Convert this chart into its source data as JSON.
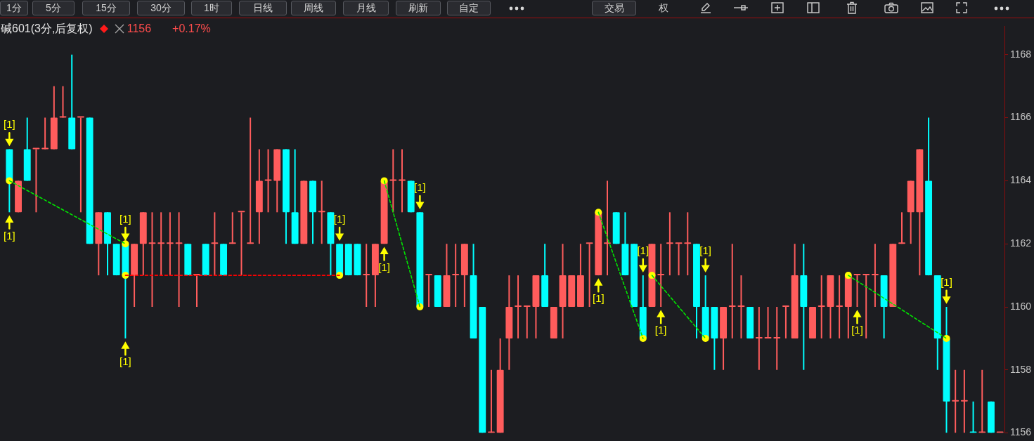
{
  "chart_data": {
    "type": "candlestick",
    "title": "碱601(3分,后复权)",
    "annotations": [
      "1156",
      "+0.17%",
      "1分",
      "5分",
      "15分",
      "30分",
      "1时",
      "日线",
      "周线",
      "月线",
      "刷新",
      "自定",
      "交易",
      "权"
    ],
    "categories": [
      null,
      null,
      null,
      null,
      null,
      null,
      null,
      null,
      null,
      null,
      null,
      null,
      null,
      null,
      null,
      null,
      null,
      null,
      null,
      null,
      null,
      null,
      null,
      null,
      null,
      null,
      null,
      null,
      null,
      null,
      null,
      null,
      null,
      null,
      null,
      null,
      null,
      null,
      null,
      null,
      null,
      null,
      null,
      null,
      null,
      null,
      null,
      null,
      null,
      null,
      null,
      null,
      null,
      null,
      null,
      null,
      null,
      null,
      null,
      null,
      null,
      null,
      null,
      null,
      null,
      null,
      null,
      null,
      null,
      null,
      null,
      null,
      null,
      null,
      null,
      null,
      null,
      null,
      null,
      null,
      null,
      null,
      null,
      null,
      null,
      null,
      null,
      null,
      null,
      null,
      null,
      null,
      null,
      null,
      null,
      null,
      null,
      null,
      null,
      null,
      null,
      null,
      null,
      null,
      null,
      null,
      null,
      null,
      null,
      null,
      null,
      null
    ],
    "ohlc": [
      [
        1165,
        1165,
        1163,
        1164
      ],
      [
        1163,
        1164,
        1163,
        1164
      ],
      [
        1165,
        1166,
        1164,
        1164
      ],
      [
        1165,
        1165,
        1163,
        1165
      ],
      [
        1165,
        1166,
        1165,
        1165
      ],
      [
        1165,
        1167,
        1165,
        1166
      ],
      [
        1166,
        1167,
        1166,
        1166
      ],
      [
        1166,
        1168,
        1165,
        1165
      ],
      [
        1166,
        1166,
        1163,
        1166
      ],
      [
        1166,
        1166,
        1162,
        1162
      ],
      [
        1162,
        1163,
        1161,
        1163
      ],
      [
        1163,
        1163,
        1161,
        1162
      ],
      [
        1162,
        1162,
        1161,
        1161
      ],
      [
        1162,
        1162,
        1159,
        1161
      ],
      [
        1161,
        1162,
        1160,
        1162
      ],
      [
        1162,
        1163,
        1161,
        1163
      ],
      [
        1162,
        1163,
        1160,
        1162
      ],
      [
        1162,
        1163,
        1161,
        1162
      ],
      [
        1162,
        1163,
        1161,
        1162
      ],
      [
        1162,
        1163,
        1160,
        1162
      ],
      [
        1162,
        1162,
        1161,
        1161
      ],
      [
        1161,
        1161,
        1160,
        1161
      ],
      [
        1162,
        1162,
        1161,
        1161
      ],
      [
        1162,
        1163,
        1161,
        1162
      ],
      [
        1162,
        1162,
        1161,
        1161
      ],
      [
        1162,
        1163,
        1162,
        1162
      ],
      [
        1163,
        1163,
        1161,
        1163
      ],
      [
        1162,
        1166,
        1162,
        1162
      ],
      [
        1163,
        1165,
        1162,
        1164
      ],
      [
        1164,
        1165,
        1163,
        1164
      ],
      [
        1164,
        1165,
        1163,
        1165
      ],
      [
        1165,
        1165,
        1162,
        1163
      ],
      [
        1163,
        1165,
        1162,
        1162
      ],
      [
        1162,
        1164,
        1162,
        1164
      ],
      [
        1164,
        1164,
        1162,
        1163
      ],
      [
        1163,
        1164,
        1162,
        1163
      ],
      [
        1163,
        1163,
        1161,
        1162
      ],
      [
        1162,
        1162,
        1161,
        1161
      ],
      [
        1162,
        1162,
        1161,
        1161
      ],
      [
        1162,
        1162,
        1161,
        1161
      ],
      [
        1161,
        1162,
        1160,
        1161
      ],
      [
        1161,
        1162,
        1160,
        1162
      ],
      [
        1162,
        1164,
        1162,
        1164
      ],
      [
        1164,
        1165,
        1163,
        1164
      ],
      [
        1164,
        1165,
        1163,
        1164
      ],
      [
        1164,
        1164,
        1163,
        1163
      ],
      [
        1163,
        1163,
        1160,
        1160
      ],
      [
        1161,
        1161,
        1160,
        1161
      ],
      [
        1161,
        1161,
        1160,
        1160
      ],
      [
        1160,
        1162,
        1160,
        1161
      ],
      [
        1161,
        1162,
        1160,
        1161
      ],
      [
        1161,
        1162,
        1160,
        1162
      ],
      [
        1161,
        1162,
        1159,
        1159
      ],
      [
        1160,
        1160,
        1156,
        1156
      ],
      [
        1156,
        1158,
        1156,
        1156
      ],
      [
        1156,
        1159,
        1156,
        1158
      ],
      [
        1159,
        1161,
        1158,
        1160
      ],
      [
        1160,
        1161,
        1159,
        1160
      ],
      [
        1160,
        1160,
        1159,
        1160
      ],
      [
        1160,
        1161,
        1159,
        1161
      ],
      [
        1161,
        1162,
        1160,
        1160
      ],
      [
        1159,
        1160,
        1159,
        1160
      ],
      [
        1160,
        1162,
        1159,
        1161
      ],
      [
        1160,
        1161,
        1160,
        1161
      ],
      [
        1160,
        1162,
        1160,
        1161
      ],
      [
        1162,
        1162,
        1160,
        1162
      ],
      [
        1161,
        1163,
        1161,
        1163
      ],
      [
        1162,
        1164,
        1161,
        1162
      ],
      [
        1163,
        1163,
        1162,
        1162
      ],
      [
        1162,
        1163,
        1161,
        1161
      ],
      [
        1162,
        1162,
        1160,
        1160
      ],
      [
        1160,
        1161,
        1159,
        1159
      ],
      [
        1160,
        1162,
        1160,
        1162
      ],
      [
        1161,
        1162,
        1160,
        1161
      ],
      [
        1162,
        1163,
        1161,
        1162
      ],
      [
        1162,
        1162,
        1161,
        1162
      ],
      [
        1162,
        1163,
        1161,
        1162
      ],
      [
        1162,
        1162,
        1159,
        1160
      ],
      [
        1160,
        1161,
        1159,
        1159
      ],
      [
        1160,
        1160,
        1158,
        1159
      ],
      [
        1159,
        1160,
        1158,
        1160
      ],
      [
        1160,
        1162,
        1159,
        1160
      ],
      [
        1160,
        1161,
        1159,
        1160
      ],
      [
        1160,
        1160,
        1159,
        1159
      ],
      [
        1159,
        1160,
        1158,
        1159
      ],
      [
        1159,
        1160,
        1159,
        1159
      ],
      [
        1159,
        1160,
        1158,
        1159
      ],
      [
        1160,
        1160,
        1159,
        1160
      ],
      [
        1159,
        1162,
        1159,
        1161
      ],
      [
        1161,
        1162,
        1158,
        1160
      ],
      [
        1159,
        1160,
        1159,
        1160
      ],
      [
        1160,
        1161,
        1159,
        1160
      ],
      [
        1160,
        1161,
        1159,
        1161
      ],
      [
        1160,
        1161,
        1159,
        1160
      ],
      [
        1160,
        1161,
        1159,
        1161
      ],
      [
        1161,
        1161,
        1160,
        1161
      ],
      [
        1161,
        1161,
        1159,
        1161
      ],
      [
        1161,
        1162,
        1160,
        1161
      ],
      [
        1161,
        1161,
        1159,
        1160
      ],
      [
        1160,
        1162,
        1160,
        1162
      ],
      [
        1162,
        1163,
        1162,
        1162
      ],
      [
        1163,
        1164,
        1162,
        1164
      ],
      [
        1163,
        1165,
        1161,
        1165
      ],
      [
        1164,
        1166,
        1161,
        1161
      ],
      [
        1161,
        1161,
        1158,
        1159
      ],
      [
        1159,
        1160,
        1156,
        1157
      ],
      [
        1157,
        1158,
        1156,
        1157
      ],
      [
        1157,
        1158,
        1156,
        1157
      ],
      [
        1156,
        1157,
        1156,
        1156
      ],
      [
        1156,
        1158,
        1156,
        1156
      ],
      [
        1157,
        1157,
        1156,
        1156
      ],
      [
        1156,
        1156,
        1156,
        1156
      ]
    ],
    "colors": [
      "#00ffff",
      "#ff5c5c",
      "#00ffff",
      "#ff5c5c",
      "#ff5c5c",
      "#ff5c5c",
      "#ff5c5c",
      "#00ffff",
      "#ff5c5c",
      "#00ffff",
      "#ff5c5c",
      "#00ffff",
      "#00ffff",
      "#00ffff",
      "#ff5c5c",
      "#ff5c5c",
      "#ff5c5c",
      "#ff5c5c",
      "#ff5c5c",
      "#ff5c5c",
      "#00ffff",
      "#ff5c5c",
      "#00ffff",
      "#ff5c5c",
      "#00ffff",
      "#ff5c5c",
      "#ff5c5c",
      "#ff5c5c",
      "#ff5c5c",
      "#ff5c5c",
      "#ff5c5c",
      "#00ffff",
      "#00ffff",
      "#ff5c5c",
      "#00ffff",
      "#ff5c5c",
      "#00ffff",
      "#00ffff",
      "#00ffff",
      "#00ffff",
      "#ff5c5c",
      "#ff5c5c",
      "#ff5c5c",
      "#ff5c5c",
      "#ff5c5c",
      "#00ffff",
      "#00ffff",
      "#ff5c5c",
      "#00ffff",
      "#ff5c5c",
      "#ff5c5c",
      "#ff5c5c",
      "#00ffff",
      "#00ffff",
      "#ff5c5c",
      "#ff5c5c",
      "#ff5c5c",
      "#ff5c5c",
      "#ff5c5c",
      "#ff5c5c",
      "#00ffff",
      "#ff5c5c",
      "#ff5c5c",
      "#ff5c5c",
      "#ff5c5c",
      "#ff5c5c",
      "#ff5c5c",
      "#ff5c5c",
      "#00ffff",
      "#00ffff",
      "#00ffff",
      "#00ffff",
      "#ff5c5c",
      "#ff5c5c",
      "#ff5c5c",
      "#ff5c5c",
      "#ff5c5c",
      "#00ffff",
      "#00ffff",
      "#00ffff",
      "#ff5c5c",
      "#ff5c5c",
      "#ff5c5c",
      "#00ffff",
      "#ff5c5c",
      "#ff5c5c",
      "#ff5c5c",
      "#ff5c5c",
      "#ff5c5c",
      "#00ffff",
      "#ff5c5c",
      "#ff5c5c",
      "#ff5c5c",
      "#ff5c5c",
      "#ff5c5c",
      "#ff5c5c",
      "#ff5c5c",
      "#ff5c5c",
      "#00ffff",
      "#ff5c5c",
      "#ff5c5c",
      "#ff5c5c",
      "#ff5c5c",
      "#00ffff",
      "#00ffff",
      "#00ffff",
      "#ff5c5c",
      "#ff5c5c",
      "#00ffff",
      "#ff5c5c",
      "#00ffff",
      "#ff5c5c"
    ],
    "series": [
      {
        "type": "line",
        "color": "#00e600",
        "line_style": "dashed",
        "values": [
          1164,
          null,
          null,
          null,
          null,
          null,
          null,
          null,
          null,
          null,
          null,
          null,
          null,
          1162,
          null,
          null,
          null,
          null,
          null,
          null,
          null,
          null,
          null,
          null,
          null,
          null,
          null,
          null,
          null,
          null,
          null,
          null,
          null,
          null,
          null,
          null,
          null,
          null,
          null,
          null,
          null,
          null,
          null,
          null,
          null,
          null,
          null,
          null,
          null,
          null,
          null,
          null,
          null,
          null,
          null,
          null,
          null,
          null,
          null,
          null,
          null,
          null,
          null,
          null,
          null,
          null,
          null,
          null,
          null,
          null,
          null,
          null,
          null,
          null,
          null,
          null,
          null,
          null,
          null,
          null,
          null,
          null,
          null,
          null,
          null,
          null,
          null,
          null,
          null,
          null,
          null,
          null,
          null,
          null,
          null,
          null,
          null,
          null,
          null,
          null,
          null,
          null,
          null,
          null,
          null,
          null,
          null,
          null,
          null,
          null,
          null,
          null
        ]
      },
      {
        "type": "line",
        "color": "#00e600",
        "line_style": "dashed",
        "values": [
          null,
          null,
          null,
          null,
          null,
          null,
          null,
          null,
          null,
          null,
          null,
          null,
          null,
          null,
          null,
          null,
          null,
          null,
          null,
          null,
          null,
          null,
          null,
          null,
          null,
          null,
          null,
          null,
          null,
          null,
          null,
          null,
          null,
          null,
          null,
          null,
          null,
          null,
          null,
          null,
          null,
          null,
          1164,
          null,
          null,
          null,
          1160,
          null,
          null,
          null,
          null,
          null,
          null,
          null,
          null,
          null,
          null,
          null,
          null,
          null,
          null,
          null,
          null,
          null,
          null,
          null,
          null,
          null,
          null,
          null,
          null,
          null,
          null,
          null,
          null,
          null,
          null,
          null,
          null,
          null,
          null,
          null,
          null,
          null,
          null,
          null,
          null,
          null,
          null,
          null,
          null,
          null,
          null,
          null,
          null,
          null,
          null,
          null,
          null,
          null,
          null,
          null,
          null,
          null,
          null,
          null,
          null,
          null,
          null,
          null,
          null,
          null
        ]
      },
      {
        "type": "line",
        "color": "#00e600",
        "line_style": "dashed",
        "values": [
          null,
          null,
          null,
          null,
          null,
          null,
          null,
          null,
          null,
          null,
          null,
          null,
          null,
          null,
          null,
          null,
          null,
          null,
          null,
          null,
          null,
          null,
          null,
          null,
          null,
          null,
          null,
          null,
          null,
          null,
          null,
          null,
          null,
          null,
          null,
          null,
          null,
          null,
          null,
          null,
          null,
          null,
          null,
          null,
          null,
          null,
          null,
          null,
          null,
          null,
          null,
          null,
          null,
          null,
          null,
          null,
          null,
          null,
          null,
          null,
          null,
          null,
          null,
          null,
          null,
          null,
          1163,
          null,
          null,
          null,
          null,
          1159,
          null,
          null,
          null,
          null,
          null,
          null,
          null,
          null,
          null,
          null,
          null,
          null,
          null,
          null,
          null,
          null,
          null,
          null,
          null,
          null,
          null,
          null,
          null,
          null,
          null,
          null,
          null,
          null,
          null,
          null,
          null,
          null,
          null,
          null,
          null,
          null,
          null,
          null,
          null,
          null
        ]
      },
      {
        "type": "line",
        "color": "#00e600",
        "line_style": "dashed",
        "values": [
          null,
          null,
          null,
          null,
          null,
          null,
          null,
          null,
          null,
          null,
          null,
          null,
          null,
          null,
          null,
          null,
          null,
          null,
          null,
          null,
          null,
          null,
          null,
          null,
          null,
          null,
          null,
          null,
          null,
          null,
          null,
          null,
          null,
          null,
          null,
          null,
          null,
          null,
          null,
          null,
          null,
          null,
          null,
          null,
          null,
          null,
          null,
          null,
          null,
          null,
          null,
          null,
          null,
          null,
          null,
          null,
          null,
          null,
          null,
          null,
          null,
          null,
          null,
          null,
          null,
          null,
          null,
          null,
          null,
          null,
          null,
          null,
          1161,
          null,
          null,
          null,
          null,
          null,
          1159,
          null,
          null,
          null,
          null,
          null,
          null,
          null,
          null,
          null,
          null,
          null,
          null,
          null,
          null,
          null,
          null,
          null,
          null,
          null,
          null,
          null,
          null,
          null,
          null,
          null,
          null,
          null,
          null,
          null,
          null,
          null,
          null,
          null
        ]
      },
      {
        "type": "line",
        "color": "#00e600",
        "line_style": "dashed",
        "values": [
          null,
          null,
          null,
          null,
          null,
          null,
          null,
          null,
          null,
          null,
          null,
          null,
          null,
          null,
          null,
          null,
          null,
          null,
          null,
          null,
          null,
          null,
          null,
          null,
          null,
          null,
          null,
          null,
          null,
          null,
          null,
          null,
          null,
          null,
          null,
          null,
          null,
          null,
          null,
          null,
          null,
          null,
          null,
          null,
          null,
          null,
          null,
          null,
          null,
          null,
          null,
          null,
          null,
          null,
          null,
          null,
          null,
          null,
          null,
          null,
          null,
          null,
          null,
          null,
          null,
          null,
          null,
          null,
          null,
          null,
          null,
          null,
          null,
          null,
          null,
          null,
          null,
          null,
          null,
          null,
          null,
          null,
          null,
          null,
          null,
          null,
          null,
          null,
          null,
          null,
          null,
          null,
          null,
          null,
          1161,
          null,
          null,
          null,
          null,
          null,
          null,
          null,
          null,
          null,
          null,
          1159,
          null,
          null,
          null,
          null,
          null,
          null
        ]
      },
      {
        "type": "line",
        "color": "#ff0000",
        "line_style": "dashed",
        "values": [
          null,
          null,
          null,
          null,
          null,
          null,
          null,
          null,
          null,
          null,
          null,
          null,
          null,
          1161,
          null,
          null,
          null,
          null,
          null,
          null,
          null,
          null,
          null,
          null,
          null,
          null,
          null,
          null,
          null,
          null,
          null,
          null,
          null,
          null,
          null,
          null,
          null,
          1161,
          null,
          null,
          null,
          null,
          null,
          null,
          null,
          null,
          null,
          null,
          null,
          null,
          null,
          null,
          null,
          null,
          null,
          null,
          null,
          null,
          null,
          null,
          null,
          null,
          null,
          null,
          null,
          null,
          null,
          null,
          null,
          null,
          null,
          null,
          null,
          null,
          null,
          null,
          null,
          null,
          null,
          null,
          null,
          null,
          null,
          null,
          null,
          null,
          null,
          null,
          null,
          null,
          null,
          null,
          null,
          null,
          null,
          null,
          null,
          null,
          null,
          null,
          null,
          null,
          null,
          null,
          null,
          null,
          null,
          null,
          null,
          null,
          null,
          null
        ]
      },
      {
        "type": "scatter",
        "color": "#ffff00",
        "marker": "circle",
        "values": [
          1164,
          null,
          null,
          null,
          null,
          null,
          null,
          null,
          null,
          null,
          null,
          null,
          null,
          1162,
          null,
          null,
          null,
          null,
          null,
          null,
          null,
          null,
          null,
          null,
          null,
          null,
          null,
          null,
          null,
          null,
          null,
          null,
          null,
          null,
          null,
          null,
          null,
          1161,
          null,
          null,
          null,
          null,
          1164,
          null,
          null,
          null,
          1160,
          null,
          null,
          null,
          null,
          null,
          null,
          null,
          null,
          null,
          null,
          null,
          null,
          null,
          null,
          null,
          null,
          null,
          null,
          null,
          1163,
          null,
          null,
          null,
          null,
          1159,
          1161,
          null,
          null,
          null,
          null,
          null,
          1159,
          null,
          null,
          null,
          null,
          null,
          null,
          null,
          null,
          null,
          null,
          null,
          null,
          null,
          null,
          null,
          1161,
          null,
          null,
          null,
          null,
          null,
          null,
          null,
          null,
          null,
          null,
          1159,
          null,
          null,
          null,
          null,
          null,
          null
        ]
      },
      {
        "type": "scatter",
        "color": "#ffff00",
        "marker": "circle",
        "values": [
          null,
          null,
          null,
          null,
          null,
          null,
          null,
          null,
          null,
          null,
          null,
          null,
          null,
          1161,
          null,
          null,
          null,
          null,
          null,
          null,
          null,
          null,
          null,
          null,
          null,
          null,
          null,
          null,
          null,
          null,
          null,
          null,
          null,
          null,
          null,
          null,
          null,
          null,
          null,
          null,
          null,
          null,
          null,
          null,
          null,
          null,
          null,
          null,
          null,
          null,
          null,
          null,
          null,
          null,
          null,
          null,
          null,
          null,
          null,
          null,
          null,
          null,
          null,
          null,
          null,
          null,
          null,
          null,
          null,
          null,
          null,
          null,
          null,
          null,
          null,
          null,
          null,
          null,
          null,
          null,
          null,
          null,
          null,
          null,
          null,
          null,
          null,
          null,
          null,
          null,
          null,
          null,
          null,
          null,
          null,
          null,
          null,
          null,
          null,
          null,
          null,
          null,
          null,
          null,
          null,
          null,
          null,
          null,
          null,
          null,
          null,
          null
        ]
      },
      {
        "type": "scatter",
        "name": "[1]",
        "color": "#ffff00",
        "marker": "triangle",
        "values": [
          1162.75,
          null,
          null,
          null,
          null,
          null,
          null,
          null,
          null,
          null,
          null,
          null,
          null,
          1158.75,
          null,
          null,
          null,
          null,
          null,
          null,
          null,
          null,
          null,
          null,
          null,
          null,
          null,
          null,
          null,
          null,
          null,
          null,
          null,
          null,
          null,
          null,
          null,
          null,
          null,
          null,
          null,
          null,
          1161.75,
          null,
          null,
          null,
          null,
          null,
          null,
          null,
          null,
          null,
          null,
          null,
          null,
          null,
          null,
          null,
          null,
          null,
          null,
          null,
          null,
          null,
          null,
          null,
          1160.75,
          null,
          null,
          null,
          null,
          null,
          null,
          1159.75,
          null,
          null,
          null,
          null,
          null,
          null,
          null,
          null,
          null,
          null,
          null,
          null,
          null,
          null,
          null,
          null,
          null,
          null,
          null,
          null,
          null,
          1159.75,
          null,
          null,
          null,
          null,
          null,
          null,
          null,
          null,
          null,
          null,
          null,
          null,
          null,
          null,
          null,
          null
        ]
      },
      {
        "type": "scatter",
        "name": "[1]",
        "color": "#ffff00",
        "marker": "triangle",
        "values": [
          1165.25,
          null,
          null,
          null,
          null,
          null,
          null,
          null,
          null,
          null,
          null,
          null,
          null,
          1162.25,
          null,
          null,
          null,
          null,
          null,
          null,
          null,
          null,
          null,
          null,
          null,
          null,
          null,
          null,
          null,
          null,
          null,
          null,
          null,
          null,
          null,
          null,
          null,
          1162.25,
          null,
          null,
          null,
          null,
          null,
          null,
          null,
          null,
          1163.25,
          null,
          null,
          null,
          null,
          null,
          null,
          null,
          null,
          null,
          null,
          null,
          null,
          null,
          null,
          null,
          null,
          null,
          null,
          null,
          null,
          null,
          null,
          null,
          null,
          1161.25,
          null,
          null,
          null,
          null,
          null,
          null,
          1161.25,
          null,
          null,
          null,
          null,
          null,
          null,
          null,
          null,
          null,
          null,
          null,
          null,
          null,
          null,
          null,
          null,
          null,
          null,
          null,
          null,
          null,
          null,
          null,
          null,
          null,
          null,
          1160.25,
          null,
          null,
          null,
          null,
          null,
          null
        ]
      }
    ],
    "ylim": [
      1156,
      1168.9
    ],
    "yticks": [
      1156,
      1158,
      1160,
      1162,
      1164,
      1166,
      1168
    ],
    "tick_labels": "y"
  }
}
